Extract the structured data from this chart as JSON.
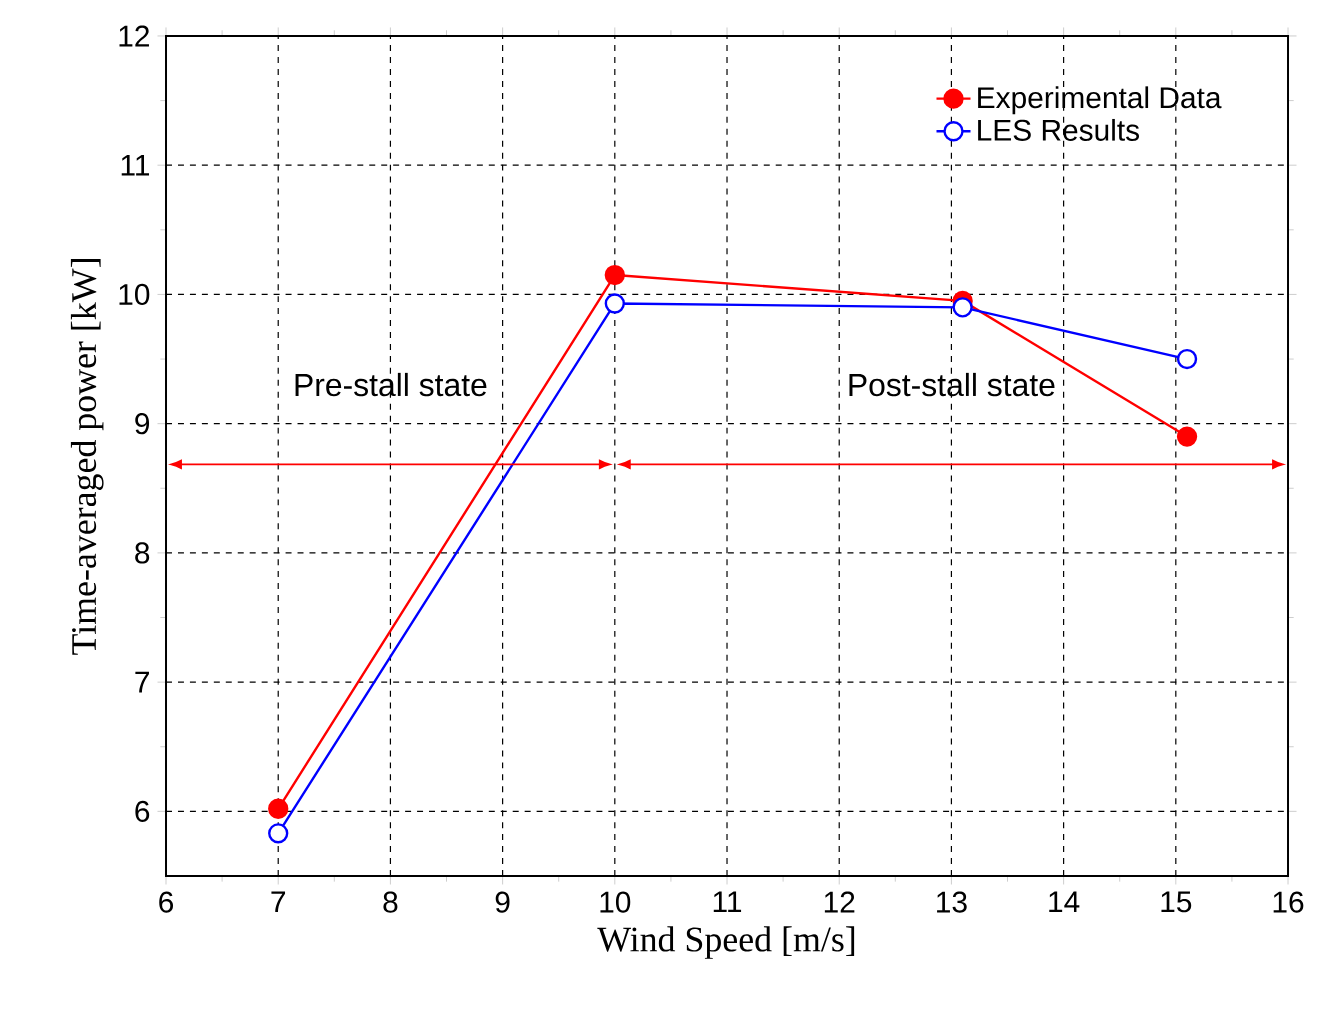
{
  "chart_data": {
    "type": "line",
    "xlabel": "Wind Speed [m/s]",
    "ylabel": "Time-averaged power [kW]",
    "xlim": [
      6,
      16
    ],
    "ylim": [
      5.5,
      12
    ],
    "xticks": [
      6,
      7,
      8,
      9,
      10,
      11,
      12,
      13,
      14,
      15,
      16
    ],
    "yticks": [
      6,
      7,
      8,
      9,
      10,
      11,
      12
    ],
    "grid": true,
    "legend": "top right",
    "line_style": "solid",
    "series": [
      {
        "name": "Experimental Data",
        "color": "#ff0000",
        "x": [
          7,
          10,
          13.1,
          15.1
        ],
        "values": [
          6.02,
          10.15,
          9.95,
          8.9
        ],
        "marker": "circle"
      },
      {
        "name": "LES Results",
        "color": "#0000ff",
        "x": [
          7,
          10,
          13.1,
          15.1
        ],
        "values": [
          5.83,
          9.93,
          9.9,
          9.5
        ],
        "marker": "open circle"
      }
    ],
    "annotations": [
      "Pre-stall state",
      "Post-stall state"
    ]
  }
}
